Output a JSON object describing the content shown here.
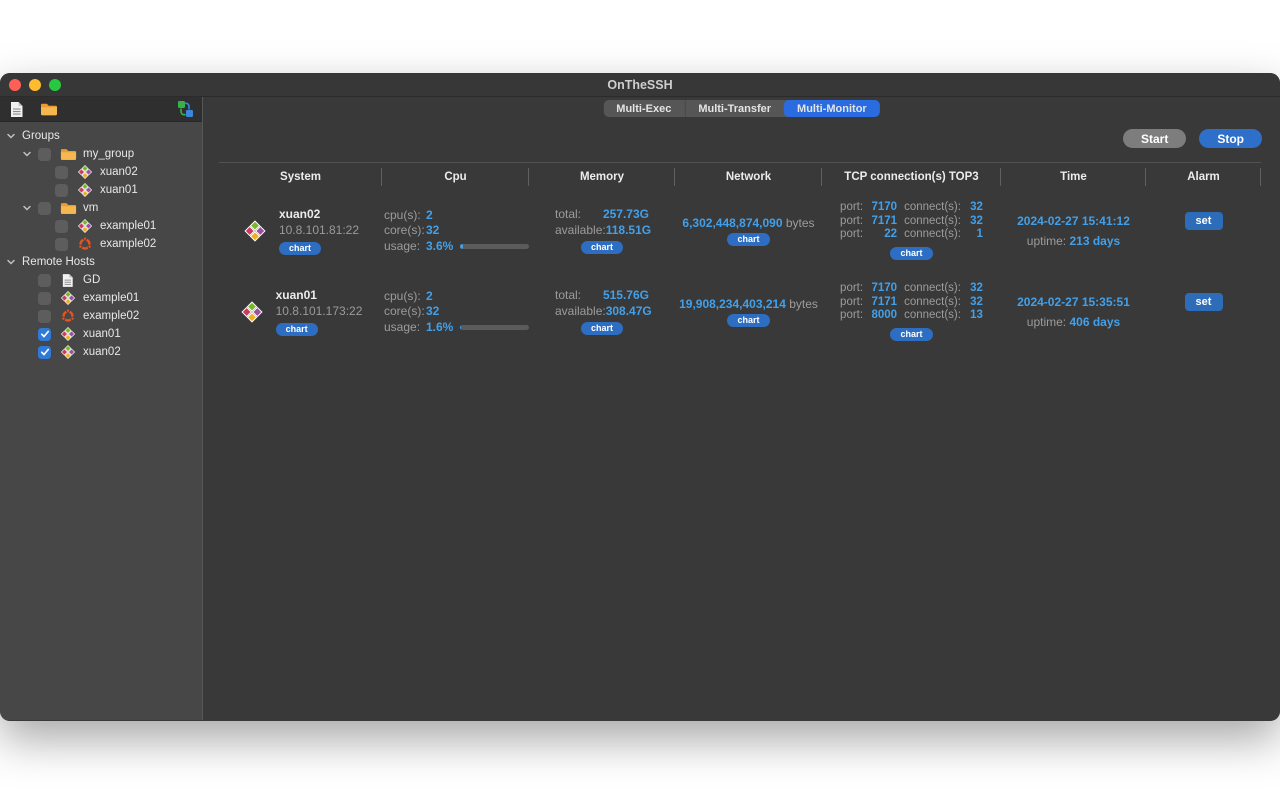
{
  "window": {
    "title": "OnTheSSH"
  },
  "sidebar": {
    "tree": [
      {
        "label": "Groups"
      },
      {
        "label": "my_group"
      },
      {
        "label": "xuan02"
      },
      {
        "label": "xuan01"
      },
      {
        "label": "vm"
      },
      {
        "label": "example01"
      },
      {
        "label": "example02"
      },
      {
        "label": "Remote Hosts"
      },
      {
        "label": "GD"
      },
      {
        "label": "example01"
      },
      {
        "label": "example02"
      },
      {
        "label": "xuan01",
        "checked": true
      },
      {
        "label": "xuan02",
        "checked": true
      }
    ]
  },
  "tabs": [
    {
      "label": "Multi-Exec",
      "active": false
    },
    {
      "label": "Multi-Transfer",
      "active": false
    },
    {
      "label": "Multi-Monitor",
      "active": true
    }
  ],
  "actions": {
    "start": "Start",
    "stop": "Stop"
  },
  "labels": {
    "chart": "chart",
    "set": "set",
    "cpus": "cpu(s):",
    "cores": "core(s):",
    "usage": "usage:",
    "total": "total:",
    "available": "available:",
    "port": "port:",
    "connects": "connect(s):",
    "uptime": "uptime:",
    "bytes_unit": "bytes"
  },
  "table": {
    "headers": [
      "System",
      "Cpu",
      "Memory",
      "Network",
      "TCP connection(s) TOP3",
      "Time",
      "Alarm"
    ],
    "rows": [
      {
        "host": "xuan02",
        "address": "10.8.101.81:22",
        "cpu": {
          "cpus": "2",
          "cores": "32",
          "usage": "3.6%",
          "usage_pct": 3.6
        },
        "memory": {
          "total": "257.73G",
          "available": "118.51G"
        },
        "network": {
          "bytes": "6,302,448,874,090"
        },
        "tcp": [
          {
            "port": "7170",
            "connects": "32"
          },
          {
            "port": "7171",
            "connects": "32"
          },
          {
            "port": "22",
            "connects": "1"
          }
        ],
        "time": {
          "datetime": "2024-02-27 15:41:12",
          "uptime": "213 days"
        }
      },
      {
        "host": "xuan01",
        "address": "10.8.101.173:22",
        "cpu": {
          "cpus": "2",
          "cores": "32",
          "usage": "1.6%",
          "usage_pct": 1.6
        },
        "memory": {
          "total": "515.76G",
          "available": "308.47G"
        },
        "network": {
          "bytes": "19,908,234,403,214"
        },
        "tcp": [
          {
            "port": "7170",
            "connects": "32"
          },
          {
            "port": "7171",
            "connects": "32"
          },
          {
            "port": "8000",
            "connects": "13"
          }
        ],
        "time": {
          "datetime": "2024-02-27 15:35:51",
          "uptime": "406 days"
        }
      }
    ]
  },
  "colors": {
    "accent_blue": "#2d6ec3",
    "value_blue": "#42a0ea",
    "selected_tab": "#2a6cdf"
  }
}
